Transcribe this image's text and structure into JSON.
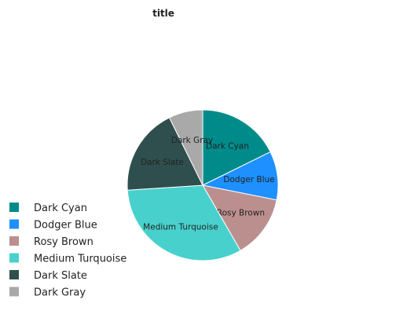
{
  "chart_data": {
    "type": "pie",
    "title": "title",
    "legend_position": "bottom-left",
    "slices": [
      {
        "label": "Dark Cyan",
        "value": 17,
        "color": "#008b8b"
      },
      {
        "label": "Dodger Blue",
        "value": 10,
        "color": "#1e90ff"
      },
      {
        "label": "Rosy Brown",
        "value": 13,
        "color": "#bc8f8f"
      },
      {
        "label": "Medium Turquoise",
        "value": 31,
        "color": "#48d1cc"
      },
      {
        "label": "Dark Slate",
        "value": 18,
        "color": "#2f4f4f"
      },
      {
        "label": "Dark Gray",
        "value": 7,
        "color": "#a9a9a9"
      }
    ]
  }
}
